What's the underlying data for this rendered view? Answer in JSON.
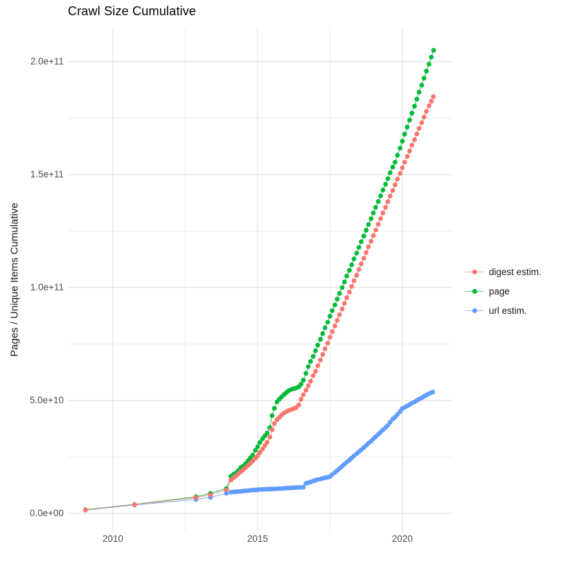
{
  "title": "Crawl Size Cumulative",
  "y_axis": {
    "label": "Pages / Unique Items Cumulative",
    "ticks": [
      "0.0e+00",
      "5.0e+10",
      "1.0e+11",
      "1.5e+11",
      "2.0e+11"
    ]
  },
  "x_axis": {
    "ticks": [
      "2010",
      "2015",
      "2020"
    ]
  },
  "legend": {
    "items": [
      {
        "label": "digest estim.",
        "color": "#F8766D"
      },
      {
        "label": "page",
        "color": "#00BA38"
      },
      {
        "label": "url estim.",
        "color": "#619CFF"
      }
    ]
  },
  "colors": {
    "digest": "#F8766D",
    "page": "#00BA38",
    "url": "#619CFF",
    "grid_major": "#E3E3E3",
    "grid_minor": "#EDEDED",
    "tick_text": "#4d4d4d"
  },
  "chart_data": {
    "type": "scatter",
    "style": "points connected by thin lines (monthly cumulative series)",
    "title": "Crawl Size Cumulative",
    "xlabel": "",
    "ylabel": "Pages / Unique Items Cumulative",
    "value_unit": "billions (1e9) of pages / unique items",
    "x_range": [
      2008.4,
      2021.7
    ],
    "y_range_e9": [
      -10,
      215
    ],
    "x_major_ticks": [
      2010,
      2015,
      2020
    ],
    "x_minor_gridlines": [
      2012.5,
      2017.5
    ],
    "y_major_ticks_e9": [
      0,
      50,
      100,
      150,
      200
    ],
    "y_minor_gridlines_e9": [
      25,
      75,
      125,
      175
    ],
    "grid": "major and minor light-gray gridlines on white panel",
    "legend_position": "right-center",
    "series": [
      {
        "name": "url estim.",
        "color": "#619CFF",
        "points_year_e9": [
          [
            2009.05,
            1.5
          ],
          [
            2010.75,
            3.7
          ],
          [
            2012.87,
            6.2
          ],
          [
            2013.37,
            7.1
          ],
          [
            2013.92,
            8.9
          ],
          [
            2014.08,
            9.4
          ],
          [
            2014.17,
            9.5
          ],
          [
            2014.25,
            9.6
          ],
          [
            2014.33,
            9.7
          ],
          [
            2014.42,
            9.8
          ],
          [
            2014.5,
            9.9
          ],
          [
            2014.58,
            10
          ],
          [
            2014.67,
            10.1
          ],
          [
            2014.75,
            10.2
          ],
          [
            2014.83,
            10.3
          ],
          [
            2014.92,
            10.4
          ],
          [
            2015,
            10.5
          ],
          [
            2015.08,
            10.6
          ],
          [
            2015.17,
            10.6
          ],
          [
            2015.25,
            10.7
          ],
          [
            2015.33,
            10.7
          ],
          [
            2015.42,
            10.8
          ],
          [
            2015.5,
            10.8
          ],
          [
            2015.58,
            10.9
          ],
          [
            2015.67,
            10.9
          ],
          [
            2015.75,
            11
          ],
          [
            2015.83,
            11
          ],
          [
            2015.92,
            11.1
          ],
          [
            2016,
            11.2
          ],
          [
            2016.08,
            11.3
          ],
          [
            2016.17,
            11.3
          ],
          [
            2016.25,
            11.4
          ],
          [
            2016.33,
            11.4
          ],
          [
            2016.42,
            11.5
          ],
          [
            2016.5,
            11.5
          ],
          [
            2016.58,
            11.6
          ],
          [
            2016.67,
            13.3
          ],
          [
            2016.75,
            13.6
          ],
          [
            2016.83,
            13.9
          ],
          [
            2016.92,
            14.3
          ],
          [
            2017,
            14.7
          ],
          [
            2017.08,
            15
          ],
          [
            2017.17,
            15.2
          ],
          [
            2017.25,
            15.5
          ],
          [
            2017.33,
            15.8
          ],
          [
            2017.42,
            16
          ],
          [
            2017.5,
            16.3
          ],
          [
            2017.58,
            17.2
          ],
          [
            2017.67,
            18.1
          ],
          [
            2017.75,
            19
          ],
          [
            2017.83,
            19.9
          ],
          [
            2017.92,
            20.9
          ],
          [
            2018,
            21.8
          ],
          [
            2018.08,
            22.7
          ],
          [
            2018.17,
            23.6
          ],
          [
            2018.25,
            24.5
          ],
          [
            2018.33,
            25.5
          ],
          [
            2018.42,
            26.4
          ],
          [
            2018.5,
            27.3
          ],
          [
            2018.58,
            28.2
          ],
          [
            2018.67,
            29.2
          ],
          [
            2018.75,
            30.1
          ],
          [
            2018.83,
            31.1
          ],
          [
            2018.92,
            32
          ],
          [
            2019,
            33
          ],
          [
            2019.08,
            34
          ],
          [
            2019.17,
            35
          ],
          [
            2019.25,
            36
          ],
          [
            2019.33,
            37
          ],
          [
            2019.42,
            38
          ],
          [
            2019.5,
            39
          ],
          [
            2019.58,
            40.4
          ],
          [
            2019.67,
            41.8
          ],
          [
            2019.75,
            42.6
          ],
          [
            2019.83,
            43.8
          ],
          [
            2019.92,
            45.1
          ],
          [
            2020,
            46.4
          ],
          [
            2020.08,
            47
          ],
          [
            2020.17,
            47.6
          ],
          [
            2020.25,
            48.2
          ],
          [
            2020.33,
            48.8
          ],
          [
            2020.42,
            49.4
          ],
          [
            2020.5,
            50
          ],
          [
            2020.58,
            50.6
          ],
          [
            2020.67,
            51.2
          ],
          [
            2020.75,
            51.8
          ],
          [
            2020.83,
            52.4
          ],
          [
            2020.92,
            53
          ],
          [
            2021,
            53.4
          ],
          [
            2021.05,
            53.7
          ]
        ]
      },
      {
        "name": "page",
        "color": "#00BA38",
        "points_year_e9": [
          [
            2009.05,
            1.7
          ],
          [
            2010.75,
            4
          ],
          [
            2012.87,
            7.4
          ],
          [
            2013.37,
            8.9
          ],
          [
            2013.92,
            11
          ],
          [
            2014.08,
            16.4
          ],
          [
            2014.17,
            17.3
          ],
          [
            2014.25,
            17.9
          ],
          [
            2014.33,
            19
          ],
          [
            2014.42,
            20.3
          ],
          [
            2014.5,
            20.9
          ],
          [
            2014.58,
            22
          ],
          [
            2014.67,
            23.3
          ],
          [
            2014.75,
            24.6
          ],
          [
            2014.83,
            25.8
          ],
          [
            2014.92,
            27.9
          ],
          [
            2015,
            29.5
          ],
          [
            2015.08,
            31.4
          ],
          [
            2015.17,
            33
          ],
          [
            2015.25,
            34.3
          ],
          [
            2015.33,
            35.6
          ],
          [
            2015.42,
            38
          ],
          [
            2015.5,
            43.3
          ],
          [
            2015.58,
            46.5
          ],
          [
            2015.67,
            49.4
          ],
          [
            2015.75,
            50.6
          ],
          [
            2015.83,
            51.6
          ],
          [
            2015.92,
            52.7
          ],
          [
            2016,
            53.6
          ],
          [
            2016.08,
            54.4
          ],
          [
            2016.17,
            54.9
          ],
          [
            2016.25,
            55.2
          ],
          [
            2016.33,
            55.5
          ],
          [
            2016.42,
            56
          ],
          [
            2016.5,
            57.2
          ],
          [
            2016.58,
            59
          ],
          [
            2016.67,
            62
          ],
          [
            2016.75,
            65
          ],
          [
            2016.83,
            67.3
          ],
          [
            2016.92,
            69.5
          ],
          [
            2017,
            72
          ],
          [
            2017.08,
            74.5
          ],
          [
            2017.17,
            77.1
          ],
          [
            2017.25,
            79.6
          ],
          [
            2017.33,
            82.2
          ],
          [
            2017.42,
            84.7
          ],
          [
            2017.5,
            87.3
          ],
          [
            2017.58,
            89.8
          ],
          [
            2017.67,
            92.3
          ],
          [
            2017.75,
            94.9
          ],
          [
            2017.83,
            97.4
          ],
          [
            2017.92,
            100
          ],
          [
            2018,
            102.5
          ],
          [
            2018.08,
            105.1
          ],
          [
            2018.17,
            107.6
          ],
          [
            2018.25,
            110.1
          ],
          [
            2018.33,
            112.7
          ],
          [
            2018.42,
            115.2
          ],
          [
            2018.5,
            117.8
          ],
          [
            2018.58,
            120.3
          ],
          [
            2018.67,
            122.8
          ],
          [
            2018.75,
            125.4
          ],
          [
            2018.83,
            127.9
          ],
          [
            2018.92,
            130.5
          ],
          [
            2019,
            133
          ],
          [
            2019.08,
            135.5
          ],
          [
            2019.17,
            138.1
          ],
          [
            2019.25,
            140.6
          ],
          [
            2019.33,
            143.2
          ],
          [
            2019.42,
            145.7
          ],
          [
            2019.5,
            148.2
          ],
          [
            2019.58,
            150.8
          ],
          [
            2019.67,
            153.3
          ],
          [
            2019.75,
            155.5
          ],
          [
            2019.83,
            158.6
          ],
          [
            2019.92,
            161.7
          ],
          [
            2020,
            164.8
          ],
          [
            2020.08,
            167.9
          ],
          [
            2020.17,
            171
          ],
          [
            2020.25,
            174.1
          ],
          [
            2020.33,
            177.2
          ],
          [
            2020.42,
            180.3
          ],
          [
            2020.5,
            183.4
          ],
          [
            2020.58,
            186.5
          ],
          [
            2020.67,
            189.6
          ],
          [
            2020.75,
            192.7
          ],
          [
            2020.83,
            195.8
          ],
          [
            2020.92,
            198.9
          ],
          [
            2021,
            202
          ],
          [
            2021.08,
            205
          ]
        ]
      },
      {
        "name": "digest estim.",
        "color": "#F8766D",
        "points_year_e9": [
          [
            2009.05,
            1.6
          ],
          [
            2010.75,
            3.9
          ],
          [
            2012.87,
            7
          ],
          [
            2013.37,
            8.2
          ],
          [
            2013.92,
            10.4
          ],
          [
            2014.08,
            14.8
          ],
          [
            2014.17,
            15.8
          ],
          [
            2014.25,
            16.6
          ],
          [
            2014.33,
            17.5
          ],
          [
            2014.42,
            18.5
          ],
          [
            2014.5,
            19.3
          ],
          [
            2014.58,
            20.2
          ],
          [
            2014.67,
            21.2
          ],
          [
            2014.75,
            22.2
          ],
          [
            2014.83,
            23.2
          ],
          [
            2014.92,
            24.4
          ],
          [
            2015,
            25.5
          ],
          [
            2015.08,
            27
          ],
          [
            2015.17,
            28.5
          ],
          [
            2015.25,
            30
          ],
          [
            2015.33,
            31.5
          ],
          [
            2015.42,
            33.8
          ],
          [
            2015.5,
            37.1
          ],
          [
            2015.58,
            39.8
          ],
          [
            2015.67,
            41.5
          ],
          [
            2015.75,
            42.5
          ],
          [
            2015.83,
            43.6
          ],
          [
            2015.92,
            44.5
          ],
          [
            2016,
            45.1
          ],
          [
            2016.08,
            45.6
          ],
          [
            2016.17,
            46
          ],
          [
            2016.25,
            46.4
          ],
          [
            2016.33,
            46.8
          ],
          [
            2016.42,
            48
          ],
          [
            2016.5,
            50.5
          ],
          [
            2016.58,
            52.5
          ],
          [
            2016.67,
            54.5
          ],
          [
            2016.75,
            56.5
          ],
          [
            2016.83,
            58.5
          ],
          [
            2016.92,
            61
          ],
          [
            2017,
            62.9
          ],
          [
            2017.08,
            65.4
          ],
          [
            2017.17,
            67.9
          ],
          [
            2017.25,
            70.4
          ],
          [
            2017.33,
            72.9
          ],
          [
            2017.42,
            75.4
          ],
          [
            2017.5,
            78
          ],
          [
            2017.58,
            80.5
          ],
          [
            2017.67,
            83
          ],
          [
            2017.75,
            85.5
          ],
          [
            2017.83,
            88
          ],
          [
            2017.92,
            90.5
          ],
          [
            2018,
            93
          ],
          [
            2018.08,
            95.5
          ],
          [
            2018.17,
            98
          ],
          [
            2018.25,
            100.5
          ],
          [
            2018.33,
            103
          ],
          [
            2018.42,
            105.5
          ],
          [
            2018.5,
            108
          ],
          [
            2018.58,
            110.5
          ],
          [
            2018.67,
            113
          ],
          [
            2018.75,
            115.5
          ],
          [
            2018.83,
            118
          ],
          [
            2018.92,
            120.5
          ],
          [
            2019,
            123
          ],
          [
            2019.08,
            125.5
          ],
          [
            2019.17,
            128
          ],
          [
            2019.25,
            130.5
          ],
          [
            2019.33,
            133
          ],
          [
            2019.42,
            135.5
          ],
          [
            2019.5,
            138
          ],
          [
            2019.58,
            140.5
          ],
          [
            2019.67,
            143
          ],
          [
            2019.75,
            145.5
          ],
          [
            2019.83,
            148
          ],
          [
            2019.92,
            150.5
          ],
          [
            2020,
            153
          ],
          [
            2020.08,
            155.5
          ],
          [
            2020.17,
            158
          ],
          [
            2020.25,
            160.5
          ],
          [
            2020.33,
            163
          ],
          [
            2020.42,
            165.5
          ],
          [
            2020.5,
            168
          ],
          [
            2020.58,
            170.5
          ],
          [
            2020.67,
            173
          ],
          [
            2020.75,
            175.5
          ],
          [
            2020.83,
            178
          ],
          [
            2020.92,
            180.5
          ],
          [
            2021,
            182.5
          ],
          [
            2021.07,
            184.5
          ]
        ]
      }
    ]
  }
}
